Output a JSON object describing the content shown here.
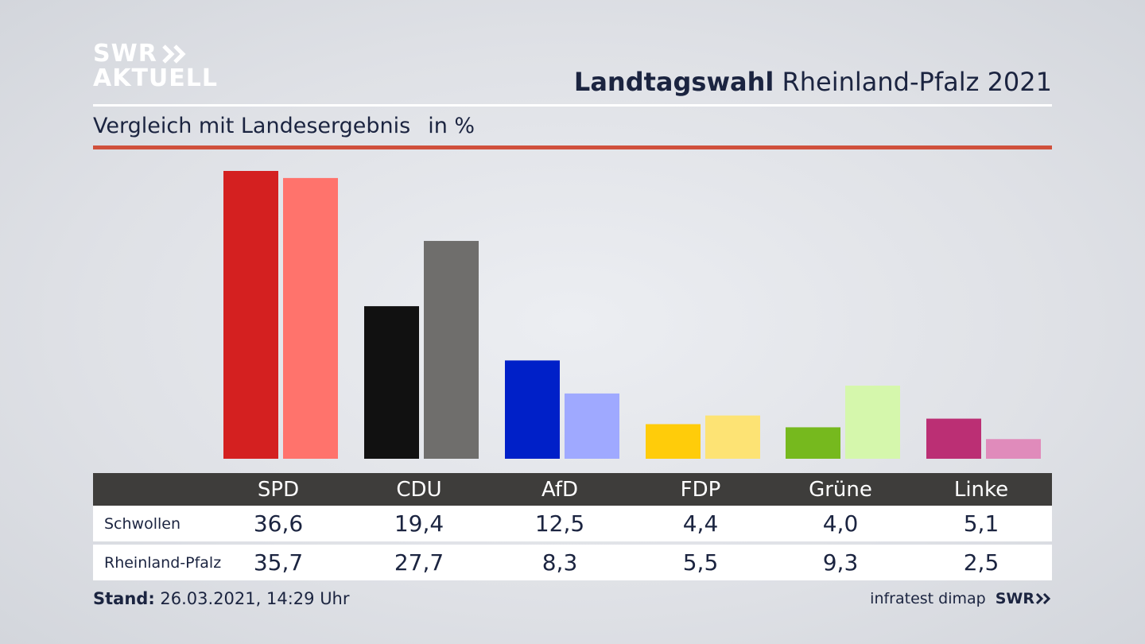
{
  "logo": {
    "line1": "SWR",
    "line2": "AKTUELL"
  },
  "header": {
    "title_bold": "Landtagswahl",
    "title_rest": "Rheinland-Pfalz 2021"
  },
  "subtitle": {
    "text": "Vergleich mit Landesergebnis",
    "unit": "in %"
  },
  "chart_data": {
    "type": "bar",
    "categories": [
      "SPD",
      "CDU",
      "AfD",
      "FDP",
      "Grüne",
      "Linke"
    ],
    "series": [
      {
        "name": "Schwollen",
        "values": [
          36.6,
          19.4,
          12.5,
          4.4,
          4.0,
          5.1
        ],
        "values_label": [
          "36,6",
          "19,4",
          "12,5",
          "4,4",
          "4,0",
          "5,1"
        ]
      },
      {
        "name": "Rheinland-Pfalz",
        "values": [
          35.7,
          27.7,
          8.3,
          5.5,
          9.3,
          2.5
        ],
        "values_label": [
          "35,7",
          "27,7",
          "8,3",
          "5,5",
          "9,3",
          "2,5"
        ]
      }
    ],
    "colors": [
      [
        "#d42020",
        "#ff736c"
      ],
      [
        "#111111",
        "#6f6e6c"
      ],
      [
        "#0020c8",
        "#9fa9ff"
      ],
      [
        "#ffcc0a",
        "#fde374"
      ],
      [
        "#76b91e",
        "#d5f7ac"
      ],
      [
        "#bb2f74",
        "#e08bbb"
      ]
    ],
    "ylim": [
      0,
      36.6
    ],
    "grid": false
  },
  "footer": {
    "stand_label": "Stand:",
    "stand_value": "26.03.2021, 14:29 Uhr",
    "source": "infratest dimap",
    "brand": "SWR"
  }
}
